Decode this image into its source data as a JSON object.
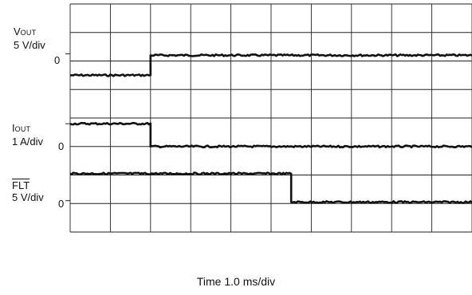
{
  "chart_data": {
    "type": "line",
    "title": "",
    "xlabel": "Time 1.0 ms/div",
    "grid": true,
    "grid_divisions": {
      "x": 10,
      "y": 8
    },
    "x_range_div": [
      0,
      10
    ],
    "series": [
      {
        "symbol": "V",
        "subscript": "OUT",
        "overline": false,
        "scale": "5 V/div",
        "zero_label": "0",
        "zero_level_div": 1.75,
        "points": [
          [
            0,
            2.5
          ],
          [
            2.0,
            2.5
          ],
          [
            2.0,
            1.8
          ],
          [
            10,
            1.8
          ]
        ]
      },
      {
        "symbol": "I",
        "subscript": "OUT",
        "overline": false,
        "scale": "1 A/div",
        "zero_label": "0",
        "zero_level_div": 4.2,
        "points": [
          [
            0,
            4.2
          ],
          [
            2.0,
            4.2
          ],
          [
            2.0,
            5.0
          ],
          [
            10,
            5.0
          ]
        ]
      },
      {
        "symbol": "FLT",
        "subscript": "",
        "overline": true,
        "scale": "5 V/div",
        "zero_label": "0",
        "zero_level_div": 6.9,
        "points": [
          [
            0,
            5.95
          ],
          [
            5.5,
            5.95
          ],
          [
            5.5,
            6.95
          ],
          [
            10,
            6.95
          ]
        ]
      }
    ]
  }
}
